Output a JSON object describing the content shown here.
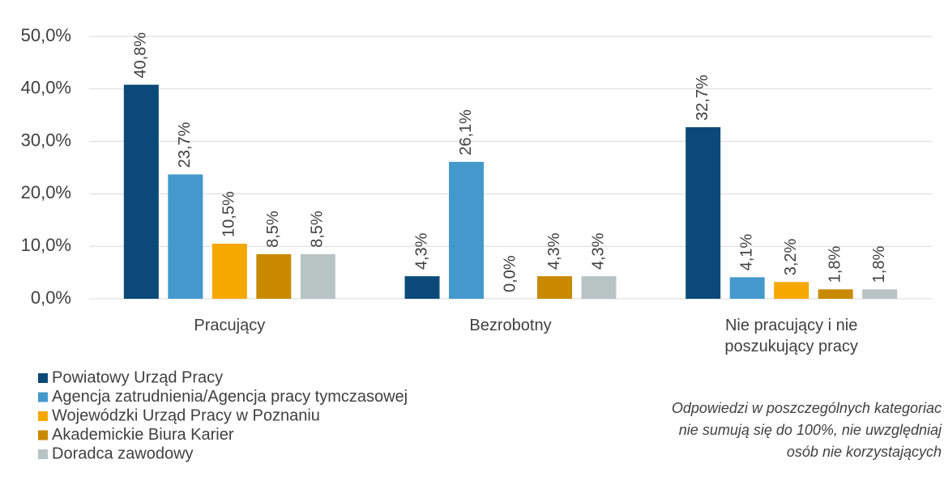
{
  "chart_data": {
    "type": "bar",
    "categories": [
      "Pracujący",
      "Bezrobotny",
      "Nie pracujący i nie poszukujący pracy"
    ],
    "series": [
      {
        "name": "Powiatowy Urząd Pracy",
        "color": "#0b4a78",
        "values": [
          40.8,
          4.3,
          32.7
        ],
        "value_labels": [
          "40,8%",
          "4,3%",
          "32,7%"
        ]
      },
      {
        "name": "Agencja zatrudnienia/Agencja pracy tymczasowej",
        "color": "#4499cc",
        "values": [
          23.7,
          26.1,
          4.1
        ],
        "value_labels": [
          "23,7%",
          "26,1%",
          "4,1%"
        ]
      },
      {
        "name": "Wojewódzki Urząd Pracy w Poznaniu",
        "color": "#f5a800",
        "values": [
          10.5,
          0.0,
          3.2
        ],
        "value_labels": [
          "10,5%",
          "0,0%",
          "3,2%"
        ]
      },
      {
        "name": "Akademickie Biura Karier",
        "color": "#c98a00",
        "values": [
          8.5,
          4.3,
          1.8
        ],
        "value_labels": [
          "8,5%",
          "4,3%",
          "1,8%"
        ]
      },
      {
        "name": "Doradca zawodowy",
        "color": "#b8c4c4",
        "values": [
          8.5,
          4.3,
          1.8
        ],
        "value_labels": [
          "8,5%",
          "4,3%",
          "1,8%"
        ]
      }
    ],
    "ylim": [
      0,
      50
    ],
    "yticks": [
      {
        "value": 0,
        "label": "0,0%"
      },
      {
        "value": 10,
        "label": "10,0%"
      },
      {
        "value": 20,
        "label": "20,0%"
      },
      {
        "value": 30,
        "label": "30,0%"
      },
      {
        "value": 40,
        "label": "40,0%"
      },
      {
        "value": 50,
        "label": "50,0%"
      }
    ],
    "grid": true,
    "legend": "bottom-left",
    "annotations": [
      "Odpowiedzi w poszczególnych kategoriac",
      "nie sumują się do 100%, nie uwzględniaj",
      "osób nie korzystających"
    ]
  }
}
